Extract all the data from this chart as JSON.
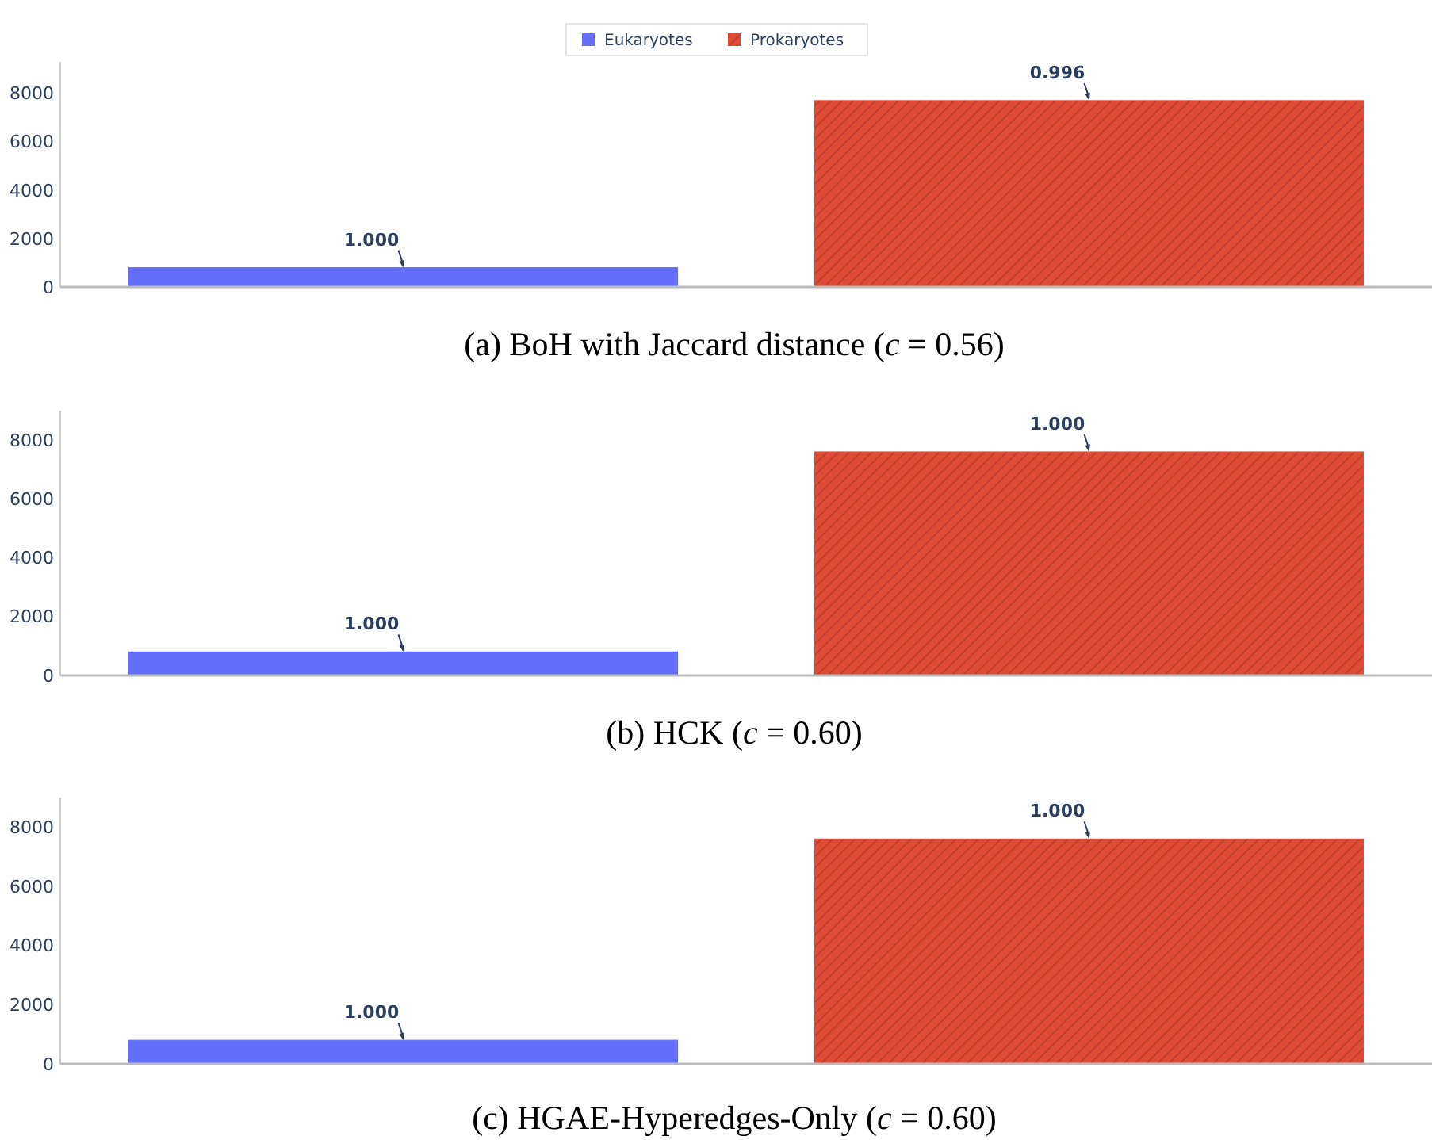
{
  "chart_data": [
    {
      "type": "bar",
      "title": "(a) BoH with Jaccard distance (c = 0.56)",
      "categories": [
        null,
        null
      ],
      "series": [
        {
          "name": "Eukaryotes",
          "color": "#636efa",
          "values": [
            800,
            null
          ]
        },
        {
          "name": "Prokaryotes",
          "color": "#e04b35",
          "values": [
            null,
            7700
          ]
        }
      ],
      "annotations": [
        {
          "text": "1.000",
          "y": 800
        },
        {
          "text": "0.996",
          "y": 7700
        }
      ],
      "ylim": [
        0,
        9300
      ],
      "yticks": [
        0,
        2000,
        4000,
        6000,
        8000
      ],
      "grid": false,
      "legend": "top"
    },
    {
      "type": "bar",
      "title": "(b) HCK (c = 0.60)",
      "categories": [
        null,
        null
      ],
      "series": [
        {
          "color": "#636efa",
          "values": [
            800,
            null
          ]
        },
        {
          "color": "#e04b35",
          "values": [
            null,
            7600
          ]
        }
      ],
      "annotations": [
        {
          "text": "1.000",
          "y": 800
        },
        {
          "text": "1.000",
          "y": 7600
        }
      ],
      "ylim": [
        0,
        9000
      ],
      "yticks": [
        0,
        2000,
        4000,
        6000,
        8000
      ],
      "grid": false
    },
    {
      "type": "bar",
      "title": "(c) HGAE-Hyperedges-Only (c = 0.60)",
      "categories": [
        null,
        null
      ],
      "series": [
        {
          "color": "#636efa",
          "values": [
            800,
            null
          ]
        },
        {
          "color": "#e04b35",
          "values": [
            null,
            7600
          ]
        }
      ],
      "annotations": [
        {
          "text": "1.000",
          "y": 800
        },
        {
          "text": "1.000",
          "y": 7600
        }
      ],
      "ylim": [
        0,
        9000
      ],
      "yticks": [
        0,
        2000,
        4000,
        6000,
        8000
      ],
      "grid": false
    }
  ]
}
